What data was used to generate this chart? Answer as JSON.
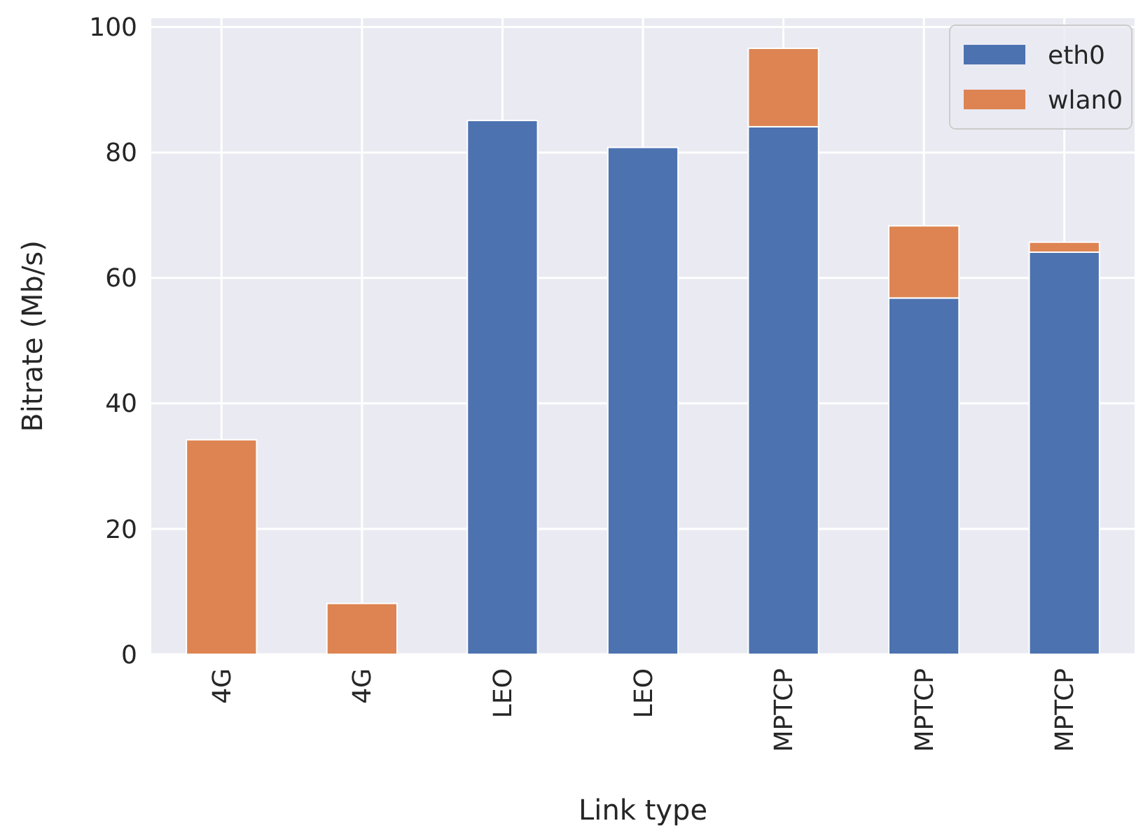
{
  "chart_data": {
    "type": "bar",
    "stacked": true,
    "xlabel": "Link type",
    "ylabel": "Bitrate (Mb/s)",
    "categories": [
      "4G",
      "4G",
      "LEO",
      "LEO",
      "MPTCP",
      "MPTCP",
      "MPTCP"
    ],
    "series": [
      {
        "name": "eth0",
        "color": "#4c72b0",
        "values": [
          null,
          null,
          85.1,
          80.8,
          84.1,
          56.8,
          64.1
        ]
      },
      {
        "name": "wlan0",
        "color": "#dd8452",
        "values": [
          34.2,
          8.1,
          null,
          null,
          12.5,
          11.5,
          1.6
        ]
      }
    ],
    "ylim": [
      0,
      101.4
    ],
    "yticks": [
      0,
      20,
      40,
      60,
      80,
      100
    ],
    "grid": true,
    "legend": "top right"
  }
}
